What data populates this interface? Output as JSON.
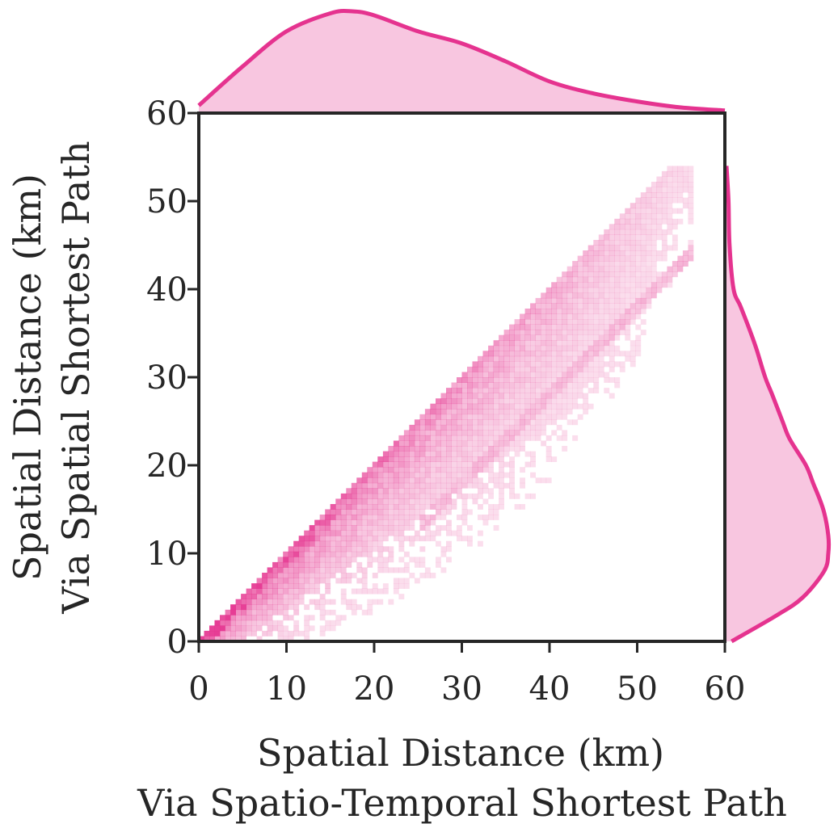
{
  "chart_data": {
    "type": "heatmap",
    "subtype": "joint-hexbin-with-marginal-kde",
    "xlabel_line1": "Spatial Distance (km)",
    "xlabel_line2": "Via Spatio-Temporal Shortest Path",
    "ylabel_line1": "Spatial Distance (km)",
    "ylabel_line2": "Via Spatial Shortest Path",
    "xlim": [
      0,
      60
    ],
    "ylim": [
      0,
      60
    ],
    "x_ticks": [
      0,
      10,
      20,
      30,
      40,
      50,
      60
    ],
    "y_ticks": [
      0,
      10,
      20,
      30,
      40,
      50,
      60
    ],
    "x_tick_labels": [
      "0",
      "10",
      "20",
      "30",
      "40",
      "50",
      "60"
    ],
    "y_tick_labels": [
      "0",
      "10",
      "20",
      "30",
      "40",
      "50",
      "60"
    ],
    "color": "#e5338f",
    "fill_color": "#f8c6e0",
    "bin_size_km": 0.6,
    "density_note": "Density concentrated along the diagonal y = x, spreading below it; none above the diagonal.",
    "marginal_x_kde": {
      "x": [
        0,
        5,
        10,
        15,
        17.5,
        20,
        25,
        30,
        35,
        40,
        45,
        50,
        55,
        60
      ],
      "density": [
        0.06,
        0.45,
        0.8,
        0.98,
        1.0,
        0.96,
        0.8,
        0.68,
        0.5,
        0.3,
        0.18,
        0.1,
        0.04,
        0.01
      ]
    },
    "marginal_y_kde": {
      "y": [
        0,
        3,
        5,
        8,
        10,
        12,
        15,
        18,
        20,
        23,
        25,
        28,
        30,
        33,
        35,
        38,
        40,
        45,
        50,
        54
      ],
      "density": [
        0.05,
        0.5,
        0.75,
        0.96,
        1.0,
        1.0,
        0.95,
        0.85,
        0.78,
        0.62,
        0.55,
        0.45,
        0.38,
        0.3,
        0.24,
        0.14,
        0.07,
        0.03,
        0.02,
        0.0
      ]
    }
  }
}
